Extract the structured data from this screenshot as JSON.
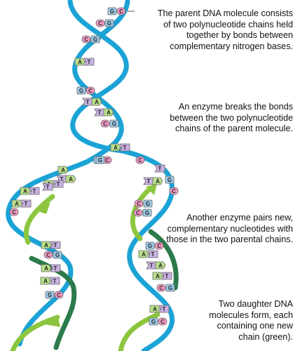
{
  "captions": [
    "The parent DNA molecule consists of two polynucleotide chains held together by bonds between complementary nitrogen bases.",
    "An enzyme breaks the bonds between the two polynucleotide chains of the parent molecule.",
    "Another enzyme pairs new, complementary nucleotides with those in the two parental chains.",
    "Two daughter DNA molecules form, each containing one new chain (green)."
  ],
  "colors": {
    "parent_strand_a": "#1ba3d6",
    "parent_strand_b": "#1ba3d6",
    "new_strand": "#8cc63f",
    "new_strand_dark": "#2b7a4b",
    "base_C": "#f59bc6",
    "base_G": "#9ecbe8",
    "base_A": "#b8e08a",
    "base_T": "#c9b1e3"
  },
  "parent_pairs": [
    [
      "G",
      "C"
    ],
    [
      "C",
      "G"
    ],
    [
      "C",
      "G"
    ],
    [
      "A",
      "T"
    ],
    [
      "G",
      "C"
    ],
    [
      "T",
      "A"
    ],
    [
      "T",
      "A"
    ],
    [
      "C",
      "G"
    ],
    [
      "A",
      "T"
    ]
  ],
  "left_daughter_pairs": [
    [
      "G",
      "C"
    ],
    [
      "T",
      "A"
    ],
    [
      "A",
      "T"
    ],
    [
      "A",
      "T"
    ],
    [
      "A",
      "T"
    ],
    [
      "A",
      "T"
    ],
    [
      "C",
      "G"
    ],
    [
      "A",
      "T"
    ],
    [
      "A",
      "T"
    ],
    [
      "G",
      "C"
    ]
  ],
  "right_daughter_pairs": [
    [
      "T",
      "A"
    ],
    [
      "C",
      "G"
    ],
    [
      "C",
      "G"
    ],
    [
      "G",
      "C"
    ],
    [
      "A",
      "T"
    ],
    [
      "T",
      "A"
    ],
    [
      "A",
      "T"
    ],
    [
      "C",
      "G"
    ],
    [
      "A",
      "T"
    ],
    [
      "G",
      "C"
    ]
  ],
  "unpaired_left": [
    "G",
    "A",
    "T",
    "C"
  ],
  "unpaired_right": [
    "C",
    "T",
    "G",
    "C"
  ]
}
